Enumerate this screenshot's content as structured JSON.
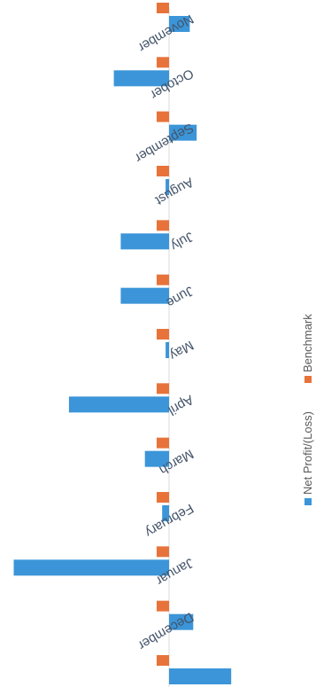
{
  "chart_data": {
    "type": "bar",
    "orientation": "horizontal",
    "categories": [
      "",
      "December",
      "Januar",
      "February",
      "March",
      "April",
      "May",
      "June",
      "July",
      "August",
      "September",
      "October",
      "November"
    ],
    "series": [
      {
        "name": "Net Profit/(Loss)",
        "color": "#3b95d8",
        "values": [
          -1.8,
          -0.7,
          4.5,
          0.2,
          0.7,
          2.9,
          0.1,
          1.4,
          1.4,
          0.1,
          -0.8,
          1.6,
          -0.6
        ]
      },
      {
        "name": "Benchmark",
        "color": "#e8733a",
        "values": [
          0.2,
          0.2,
          0.2,
          0.2,
          0.2,
          0.2,
          0.2,
          0.2,
          0.2,
          0.2,
          0.2,
          0.2,
          0.2
        ]
      }
    ],
    "title": "",
    "xlabel": "",
    "ylabel": "",
    "grid": false,
    "legend_position": "right"
  }
}
